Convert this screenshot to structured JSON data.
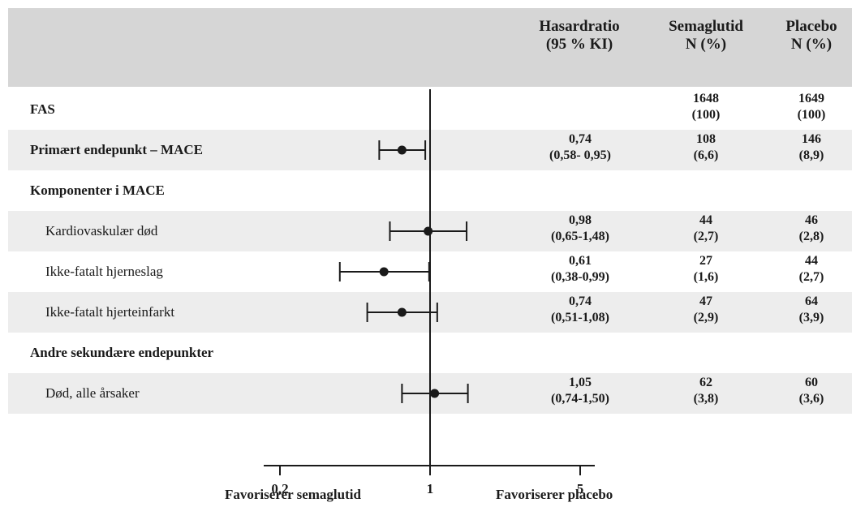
{
  "header": {
    "hr_title": "Hasardratio",
    "hr_sub": "(95 % KI)",
    "sema_title": "Semaglutid",
    "sema_sub": "N (%)",
    "placebo_title": "Placebo",
    "placebo_sub": "N (%)"
  },
  "rows": [
    {
      "label": "FAS",
      "hr": "",
      "ci": "",
      "sema_n": "1648",
      "sema_pct": "(100)",
      "placebo_n": "1649",
      "placebo_pct": "(100)"
    },
    {
      "label": "Primært endepunkt – MACE",
      "hr": "0,74",
      "ci": "(0,58- 0,95)",
      "sema_n": "108",
      "sema_pct": "(6,6)",
      "placebo_n": "146",
      "placebo_pct": "(8,9)"
    },
    {
      "label": "Komponenter i MACE",
      "hr": "",
      "ci": "",
      "sema_n": "",
      "sema_pct": "",
      "placebo_n": "",
      "placebo_pct": ""
    },
    {
      "label": "Kardiovaskulær død",
      "hr": "0,98",
      "ci": "(0,65-1,48)",
      "sema_n": "44",
      "sema_pct": "(2,7)",
      "placebo_n": "46",
      "placebo_pct": "(2,8)"
    },
    {
      "label": "Ikke-fatalt hjerneslag",
      "hr": "0,61",
      "ci": "(0,38-0,99)",
      "sema_n": "27",
      "sema_pct": "(1,6)",
      "placebo_n": "44",
      "placebo_pct": "(2,7)"
    },
    {
      "label": "Ikke-fatalt hjerteinfarkt",
      "hr": "0,74",
      "ci": "(0,51-1,08)",
      "sema_n": "47",
      "sema_pct": "(2,9)",
      "placebo_n": "64",
      "placebo_pct": "(3,9)"
    },
    {
      "label": "Andre sekundære endepunkter",
      "hr": "",
      "ci": "",
      "sema_n": "",
      "sema_pct": "",
      "placebo_n": "",
      "placebo_pct": ""
    },
    {
      "label": "Død, alle årsaker",
      "hr": "1,05",
      "ci": "(0,74-1,50)",
      "sema_n": "62",
      "sema_pct": "(3,8)",
      "placebo_n": "60",
      "placebo_pct": "(3,6)"
    }
  ],
  "chart_data": {
    "type": "forest",
    "scale": "log",
    "xlim": [
      0.2,
      5
    ],
    "xticks": [
      "0,2",
      "1",
      "5"
    ],
    "reference": 1,
    "left_label": "Favoriserer semaglutid",
    "right_label": "Favoriserer placebo",
    "points": [
      {
        "label": "Primært endepunkt – MACE",
        "hr": 0.74,
        "lo": 0.58,
        "hi": 0.95
      },
      {
        "label": "Kardiovaskulær død",
        "hr": 0.98,
        "lo": 0.65,
        "hi": 1.48
      },
      {
        "label": "Ikke-fatalt hjerneslag",
        "hr": 0.61,
        "lo": 0.38,
        "hi": 0.99
      },
      {
        "label": "Ikke-fatalt hjerteinfarkt",
        "hr": 0.74,
        "lo": 0.51,
        "hi": 1.08
      },
      {
        "label": "Død, alle årsaker",
        "hr": 1.05,
        "lo": 0.74,
        "hi": 1.5
      }
    ]
  }
}
